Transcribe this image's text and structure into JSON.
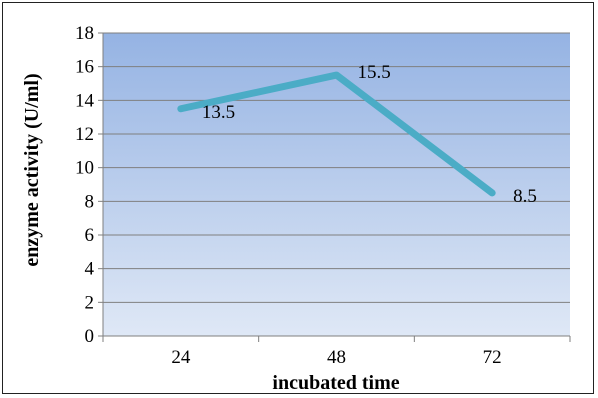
{
  "chart_data": {
    "type": "line",
    "title": "",
    "xlabel": "incubated time",
    "ylabel": "enzyme activity (U/ml)",
    "categories": [
      "24",
      "48",
      "72"
    ],
    "series": [
      {
        "values": [
          13.5,
          15.5,
          8.5
        ],
        "data_labels": [
          "13.5",
          "15.5",
          "8.5"
        ]
      }
    ],
    "ylim": [
      0,
      18
    ],
    "yticks": [
      "0",
      "2",
      "4",
      "6",
      "8",
      "10",
      "12",
      "14",
      "16",
      "18"
    ],
    "grid": true,
    "legend": "none",
    "colors": {
      "line": "#4bacc6",
      "plot_top": "#95b3e3",
      "plot_bottom": "#dfe8f6",
      "gridline": "#7f7f7f"
    }
  }
}
